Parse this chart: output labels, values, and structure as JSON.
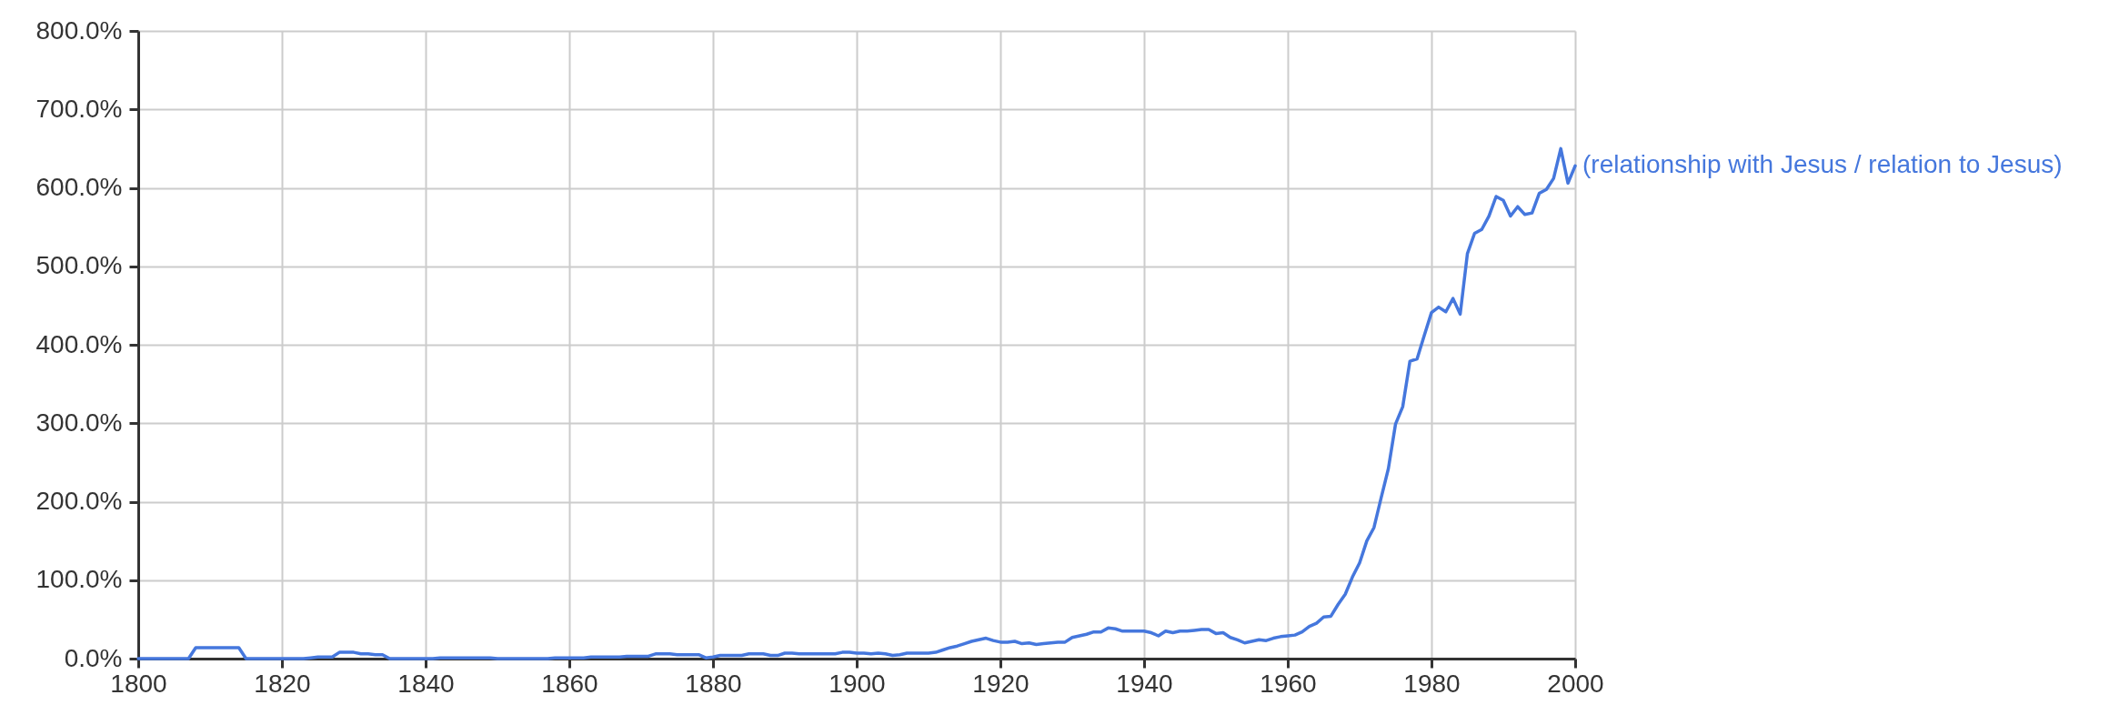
{
  "chart_data": {
    "type": "line",
    "xlim": [
      1800,
      2000
    ],
    "ylim": [
      0,
      800
    ],
    "xticks": [
      1800,
      1820,
      1840,
      1860,
      1880,
      1900,
      1920,
      1940,
      1960,
      1980,
      2000
    ],
    "yticks": [
      {
        "value": 0,
        "label": "0.0%"
      },
      {
        "value": 100,
        "label": "100.0%"
      },
      {
        "value": 200,
        "label": "200.0%"
      },
      {
        "value": 300,
        "label": "300.0%"
      },
      {
        "value": 400,
        "label": "400.0%"
      },
      {
        "value": 500,
        "label": "500.0%"
      },
      {
        "value": 600,
        "label": "600.0%"
      },
      {
        "value": 700,
        "label": "700.0%"
      },
      {
        "value": 800,
        "label": "800.0%"
      }
    ],
    "grid": true,
    "x": [
      1800,
      1801,
      1802,
      1803,
      1804,
      1805,
      1806,
      1807,
      1808,
      1809,
      1810,
      1811,
      1812,
      1813,
      1814,
      1815,
      1816,
      1817,
      1818,
      1819,
      1820,
      1821,
      1822,
      1823,
      1824,
      1825,
      1826,
      1827,
      1828,
      1829,
      1830,
      1831,
      1832,
      1833,
      1834,
      1835,
      1836,
      1837,
      1838,
      1839,
      1840,
      1841,
      1842,
      1843,
      1844,
      1845,
      1846,
      1847,
      1848,
      1849,
      1850,
      1851,
      1852,
      1853,
      1854,
      1855,
      1856,
      1857,
      1858,
      1859,
      1860,
      1861,
      1862,
      1863,
      1864,
      1865,
      1866,
      1867,
      1868,
      1869,
      1870,
      1871,
      1872,
      1873,
      1874,
      1875,
      1876,
      1877,
      1878,
      1879,
      1880,
      1881,
      1882,
      1883,
      1884,
      1885,
      1886,
      1887,
      1888,
      1889,
      1890,
      1891,
      1892,
      1893,
      1894,
      1895,
      1896,
      1897,
      1898,
      1899,
      1900,
      1901,
      1902,
      1903,
      1904,
      1905,
      1906,
      1907,
      1908,
      1909,
      1910,
      1911,
      1912,
      1913,
      1914,
      1915,
      1916,
      1917,
      1918,
      1919,
      1920,
      1921,
      1922,
      1923,
      1924,
      1925,
      1926,
      1927,
      1928,
      1929,
      1930,
      1931,
      1932,
      1933,
      1934,
      1935,
      1936,
      1937,
      1938,
      1939,
      1940,
      1941,
      1942,
      1943,
      1944,
      1945,
      1946,
      1947,
      1948,
      1949,
      1950,
      1951,
      1952,
      1953,
      1954,
      1955,
      1956,
      1957,
      1958,
      1959,
      1960,
      1961,
      1962,
      1963,
      1964,
      1965,
      1966,
      1967,
      1968,
      1969,
      1970,
      1971,
      1972,
      1973,
      1974,
      1975,
      1976,
      1977,
      1978,
      1979,
      1980,
      1981,
      1982,
      1983,
      1984,
      1985,
      1986,
      1987,
      1988,
      1989,
      1990,
      1991,
      1992,
      1993,
      1994,
      1995,
      1996,
      1997,
      1998,
      1999,
      2000
    ],
    "series": [
      {
        "name": "(relationship with Jesus / relation to Jesus)",
        "color": "#4577dd",
        "values": [
          0,
          0,
          0,
          0,
          0,
          0,
          0,
          0,
          14,
          14,
          14,
          14,
          14,
          14,
          14,
          0,
          0,
          0,
          0,
          0,
          0,
          0,
          0,
          0,
          1,
          2,
          2,
          2,
          8,
          8,
          8,
          6,
          6,
          5,
          5,
          0,
          0,
          0,
          0,
          0,
          0,
          0,
          1,
          1,
          1,
          1,
          1,
          1,
          1,
          1,
          0,
          0,
          0,
          0,
          0,
          0,
          0,
          0,
          1,
          1,
          1,
          1,
          1,
          2,
          2,
          2,
          2,
          2,
          3,
          3,
          3,
          3,
          6,
          6,
          6,
          5,
          5,
          5,
          5,
          1,
          2,
          4,
          4,
          4,
          4,
          6,
          6,
          6,
          4,
          4,
          7,
          7,
          6,
          6,
          6,
          6,
          6,
          6,
          8,
          8,
          7,
          7,
          6,
          7,
          6,
          4,
          5,
          7,
          7,
          7,
          7,
          8,
          11,
          14,
          16,
          19,
          22,
          24,
          26,
          23,
          21,
          21,
          22,
          19,
          20,
          18,
          19,
          20,
          21,
          21,
          27,
          29,
          31,
          34,
          34,
          39,
          38,
          35,
          35,
          35,
          35,
          33,
          29,
          35,
          33,
          35,
          35,
          36,
          37,
          37,
          32,
          33,
          27,
          24,
          20,
          22,
          24,
          23,
          26,
          28,
          29,
          30,
          34,
          41,
          45,
          53,
          54,
          69,
          82,
          104,
          122,
          150,
          167,
          205,
          242,
          299,
          321,
          379,
          382,
          412,
          441,
          448,
          442,
          459,
          439,
          516,
          542,
          547,
          564,
          589,
          584,
          564,
          576,
          566,
          568,
          593,
          598,
          612,
          650,
          606,
          628
        ]
      }
    ]
  }
}
